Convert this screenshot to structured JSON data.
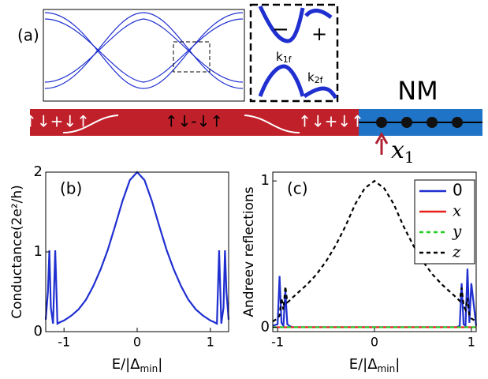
{
  "diagram": {
    "panel_label": "(a)",
    "inset_minus": "−",
    "inset_plus": "+",
    "k1f": [
      "k",
      "1f"
    ],
    "k2f": [
      "k",
      "2f"
    ],
    "nm": "NM",
    "bar_left": "↑↓+↓↑",
    "bar_mid": "↑↓-↓↑",
    "bar_right": "↑↓+↓↑",
    "x1": [
      "x",
      "1"
    ]
  },
  "chart_data": [
    {
      "type": "line",
      "panel_label": "(b)",
      "ylabel": "Conductance(2e²/h)",
      "xlabel": [
        "E/|Δ",
        "min",
        "|"
      ],
      "xlim": [
        -1.25,
        1.25
      ],
      "xticks": [
        -1,
        0,
        1
      ],
      "ylim": [
        0,
        2
      ],
      "yticks": [
        0,
        1,
        2
      ],
      "x": [
        -1.25,
        -1.22,
        -1.2,
        -1.18,
        -1.15,
        -1.12,
        -1.09,
        -1.05,
        -1,
        -0.9,
        -0.8,
        -0.7,
        -0.6,
        -0.5,
        -0.4,
        -0.3,
        -0.2,
        -0.1,
        0,
        0.1,
        0.2,
        0.3,
        0.4,
        0.5,
        0.6,
        0.7,
        0.8,
        0.9,
        1,
        1.05,
        1.09,
        1.12,
        1.15,
        1.18,
        1.2,
        1.22,
        1.25
      ],
      "series": [
        {
          "color": "#1f2fd0",
          "style": "solid",
          "values": [
            0.15,
            0.5,
            1.02,
            0.3,
            0.1,
            1.02,
            0.1,
            0.12,
            0.14,
            0.2,
            0.28,
            0.4,
            0.57,
            0.78,
            1.03,
            1.33,
            1.64,
            1.9,
            2,
            1.9,
            1.64,
            1.33,
            1.03,
            0.78,
            0.57,
            0.4,
            0.28,
            0.2,
            0.14,
            0.12,
            0.1,
            1.02,
            0.1,
            0.3,
            1.02,
            0.5,
            0.15
          ]
        }
      ]
    },
    {
      "type": "line",
      "panel_label": "(c)",
      "ylabel": "Andreev reflections",
      "xlabel": [
        "E/|Δ",
        "min",
        "|"
      ],
      "legend": "upper right",
      "xlim": [
        -1.05,
        1.05
      ],
      "xticks": [
        -1,
        0,
        1
      ],
      "ylim": [
        -0.03,
        1.06
      ],
      "yticks": [
        0,
        1
      ],
      "x": [
        -1.05,
        -1,
        -0.98,
        -0.96,
        -0.94,
        -0.92,
        -0.9,
        -0.88,
        -0.85,
        -0.8,
        -0.7,
        -0.6,
        -0.5,
        -0.4,
        -0.3,
        -0.2,
        -0.1,
        0,
        0.1,
        0.2,
        0.3,
        0.4,
        0.5,
        0.6,
        0.7,
        0.8,
        0.85,
        0.88,
        0.9,
        0.92,
        0.94,
        0.96,
        0.98,
        1,
        1.05
      ],
      "series": [
        {
          "name": "0",
          "color": "#1f2fd0",
          "style": "solid",
          "values": [
            0.01,
            0.02,
            0.35,
            0.03,
            0.01,
            0.25,
            0.02,
            0.01,
            0,
            0,
            0,
            0,
            0,
            0,
            0,
            0,
            0,
            0,
            0,
            0,
            0,
            0,
            0,
            0,
            0,
            0,
            0,
            0.01,
            0.3,
            0.02,
            0.01,
            0.4,
            0.03,
            0.3,
            0.01
          ]
        },
        {
          "name": "x",
          "color": "#e8201c",
          "style": "solid",
          "values": [
            0,
            0,
            0,
            0,
            0,
            0,
            0,
            0,
            0,
            0,
            0,
            0,
            0,
            0,
            0,
            0,
            0,
            0,
            0,
            0,
            0,
            0,
            0,
            0,
            0,
            0,
            0,
            0,
            0,
            0,
            0,
            0,
            0,
            0,
            0
          ]
        },
        {
          "name": "y",
          "color": "#22cc22",
          "style": "dashed",
          "values": [
            0,
            0,
            0,
            0,
            0,
            0,
            0,
            0,
            0,
            0,
            0,
            0,
            0,
            0,
            0,
            0,
            0,
            0,
            0,
            0,
            0,
            0,
            0,
            0,
            0,
            0,
            0,
            0,
            0,
            0,
            0,
            0,
            0,
            0,
            0
          ]
        },
        {
          "name": "z",
          "color": "#000000",
          "style": "dashed",
          "values": [
            0.04,
            0.06,
            0.08,
            0.2,
            0.12,
            0.28,
            0.17,
            0.18,
            0.2,
            0.23,
            0.29,
            0.36,
            0.45,
            0.56,
            0.69,
            0.84,
            0.95,
            1,
            0.95,
            0.84,
            0.69,
            0.56,
            0.45,
            0.36,
            0.29,
            0.23,
            0.2,
            0.18,
            0.27,
            0.15,
            0.12,
            0.2,
            0.08,
            0.06,
            0.04
          ]
        }
      ]
    }
  ]
}
